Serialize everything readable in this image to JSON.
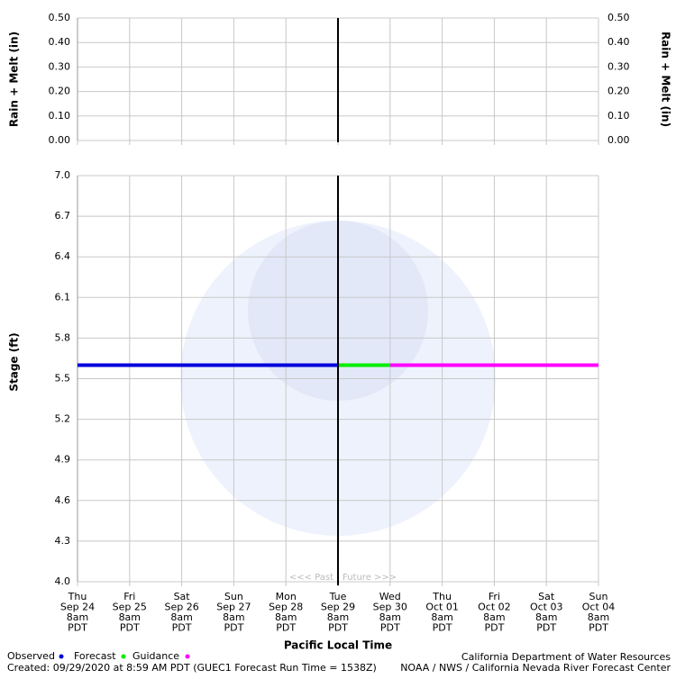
{
  "chart_data": [
    {
      "type": "empty",
      "ylabel": "Rain + Melt (in)",
      "ylim": [
        0,
        0.5
      ],
      "yticks": [
        {
          "value": 0,
          "label": "0.00"
        },
        {
          "value": 0.1,
          "label": "0.10"
        },
        {
          "value": 0.2,
          "label": "0.20"
        },
        {
          "value": 0.3,
          "label": "0.30"
        },
        {
          "value": 0.4,
          "label": "0.40"
        },
        {
          "value": 0.5,
          "label": "0.50"
        }
      ],
      "grid": true
    },
    {
      "type": "line",
      "ylabel": "Stage (ft)",
      "xlabel": "Pacific Local Time",
      "categories": [
        [
          "Thu",
          "Sep 24",
          "8am",
          "PDT"
        ],
        [
          "Fri",
          "Sep 25",
          "8am",
          "PDT"
        ],
        [
          "Sat",
          "Sep 26",
          "8am",
          "PDT"
        ],
        [
          "Sun",
          "Sep 27",
          "8am",
          "PDT"
        ],
        [
          "Mon",
          "Sep 28",
          "8am",
          "PDT"
        ],
        [
          "Tue",
          "Sep 29",
          "8am",
          "PDT"
        ],
        [
          "Wed",
          "Sep 30",
          "8am",
          "PDT"
        ],
        [
          "Thu",
          "Oct 01",
          "8am",
          "PDT"
        ],
        [
          "Fri",
          "Oct 02",
          "8am",
          "PDT"
        ],
        [
          "Sat",
          "Oct 03",
          "8am",
          "PDT"
        ],
        [
          "Sun",
          "Oct 04",
          "8am",
          "PDT"
        ]
      ],
      "ylim": [
        4,
        7
      ],
      "yticks": [
        {
          "value": 4,
          "label": "4.0"
        },
        4.3,
        4.6,
        4.9,
        5.2,
        5.5,
        5.8,
        6.1,
        6.4,
        6.7,
        {
          "value": 7,
          "label": "7.0"
        }
      ],
      "grid": true,
      "series": [
        {
          "name": "Observed",
          "color": "#0000dd",
          "values": [
            5.6,
            5.6,
            5.6,
            5.6,
            5.6,
            5.6,
            null,
            null,
            null,
            null,
            null
          ]
        },
        {
          "name": "Forecast",
          "color": "#00ee00",
          "values": [
            null,
            null,
            null,
            null,
            null,
            5.6,
            5.6,
            null,
            null,
            null,
            null
          ]
        },
        {
          "name": "Guidance",
          "color": "#ff00ff",
          "values": [
            null,
            null,
            null,
            null,
            null,
            null,
            5.6,
            5.6,
            5.6,
            5.6,
            5.6
          ]
        }
      ],
      "annotations": [
        "<<< Past",
        "Future >>>"
      ]
    }
  ],
  "footer": {
    "created": "Created: 09/29/2020 at 8:59 AM PDT  (GUEC1 Forecast Run Time = 1538Z)",
    "agency": "California Department of Water Resources",
    "center": "NOAA / NWS / California Nevada River Forecast Center"
  }
}
